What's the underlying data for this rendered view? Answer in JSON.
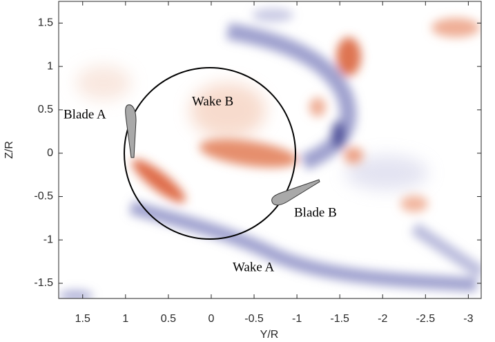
{
  "chart_data": {
    "type": "field",
    "xlabel": "Y/R",
    "ylabel": "Z/R",
    "xlim": [
      1.78,
      -3.15
    ],
    "ylim": [
      -1.675,
      1.75
    ],
    "xticks": [
      1.5,
      1,
      0.5,
      0,
      -0.5,
      -1,
      -1.5,
      -2,
      -2.5,
      -3
    ],
    "yticks": [
      -1.5,
      -1,
      -0.5,
      0,
      0.5,
      1,
      1.5
    ],
    "annotations": [
      "Blade A",
      "Wake B",
      "Blade B",
      "Wake A"
    ]
  }
}
